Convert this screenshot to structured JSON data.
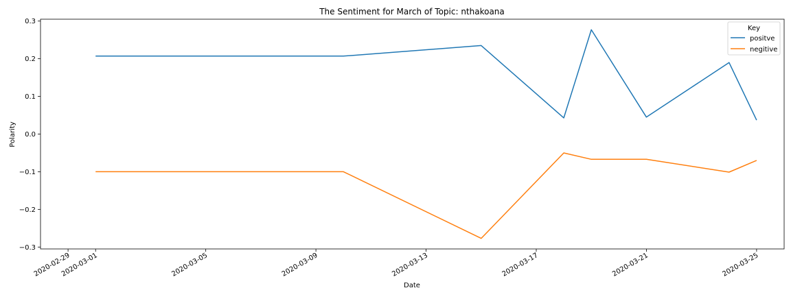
{
  "chart_data": {
    "type": "line",
    "title": "The Sentiment for March of Topic: nthakoana",
    "xlabel": "Date",
    "ylabel": "Polarity",
    "x_tick_labels": [
      "2020-02-29",
      "2020-03-01",
      "2020-03-05",
      "2020-03-09",
      "2020-03-13",
      "2020-03-17",
      "2020-03-21",
      "2020-03-25"
    ],
    "y_tick_labels": [
      "0.3",
      "0.2",
      "0.1",
      "0.0",
      "−0.1",
      "−0.2",
      "−0.3"
    ],
    "y_ticks": [
      0.3,
      0.2,
      0.1,
      0.0,
      -0.1,
      -0.2,
      -0.3
    ],
    "xlim": [
      "2020-02-28",
      "2020-03-26"
    ],
    "ylim": [
      -0.305,
      0.305
    ],
    "grid": false,
    "legend": {
      "title": "Key",
      "placement": "top-right"
    },
    "series": [
      {
        "name": "positve",
        "color": "#1f77b4",
        "x": [
          "2020-03-01",
          "2020-03-10",
          "2020-03-15",
          "2020-03-18",
          "2020-03-19",
          "2020-03-21",
          "2020-03-24",
          "2020-03-25"
        ],
        "values": [
          0.207,
          0.207,
          0.235,
          0.043,
          0.277,
          0.045,
          0.19,
          0.037
        ]
      },
      {
        "name": "negitive",
        "color": "#ff7f0e",
        "x": [
          "2020-03-01",
          "2020-03-10",
          "2020-03-15",
          "2020-03-18",
          "2020-03-19",
          "2020-03-21",
          "2020-03-24",
          "2020-03-25"
        ],
        "values": [
          -0.1,
          -0.1,
          -0.277,
          -0.05,
          -0.067,
          -0.067,
          -0.101,
          -0.07
        ]
      }
    ]
  }
}
